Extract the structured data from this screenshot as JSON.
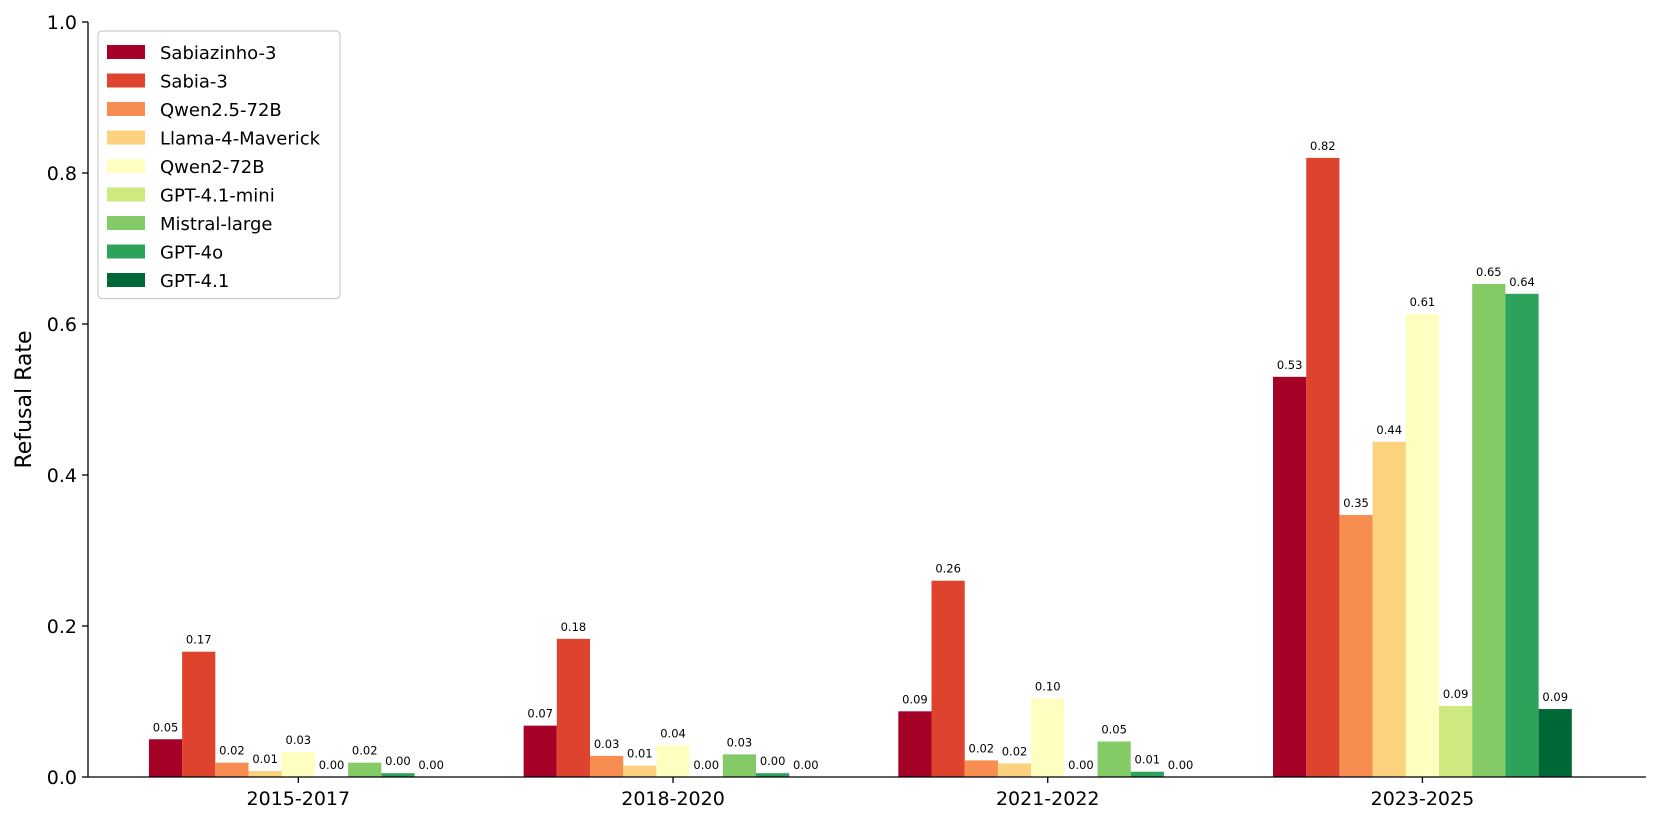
{
  "chart_data": {
    "type": "bar",
    "title": "",
    "xlabel": "",
    "ylabel": "Refusal Rate",
    "ylim": [
      0,
      1.0
    ],
    "yticks": [
      "0.0",
      "0.2",
      "0.4",
      "0.6",
      "0.8",
      "1.0"
    ],
    "categories": [
      "2015-2017",
      "2018-2020",
      "2021-2022",
      "2023-2025"
    ],
    "legend_position": "top-left",
    "grid": false,
    "series": [
      {
        "name": "Sabiazinho-3",
        "color": "#a50026",
        "values": [
          0.05,
          0.068,
          0.087,
          0.53
        ],
        "labels": [
          "0.05",
          "0.07",
          "0.09",
          "0.53"
        ]
      },
      {
        "name": "Sabia-3",
        "color": "#de432e",
        "values": [
          0.166,
          0.183,
          0.26,
          0.82
        ],
        "labels": [
          "0.17",
          "0.18",
          "0.26",
          "0.82"
        ]
      },
      {
        "name": "Qwen2.5-72B",
        "color": "#f88d52",
        "values": [
          0.019,
          0.028,
          0.022,
          0.347
        ],
        "labels": [
          "0.02",
          "0.03",
          "0.02",
          "0.35"
        ]
      },
      {
        "name": "Llama-4-Maverick",
        "color": "#fdd27f",
        "values": [
          0.008,
          0.015,
          0.018,
          0.444
        ],
        "labels": [
          "0.01",
          "0.01",
          "0.02",
          "0.44"
        ]
      },
      {
        "name": "Qwen2-72B",
        "color": "#fefec0",
        "values": [
          0.033,
          0.042,
          0.104,
          0.613
        ],
        "labels": [
          "0.03",
          "0.04",
          "0.10",
          "0.61"
        ]
      },
      {
        "name": "GPT-4.1-mini",
        "color": "#cde980",
        "values": [
          0.0,
          0.0,
          0.0,
          0.094
        ],
        "labels": [
          "0.00",
          "0.00",
          "0.00",
          "0.09"
        ]
      },
      {
        "name": "Mistral-large",
        "color": "#84ca66",
        "values": [
          0.019,
          0.03,
          0.047,
          0.653
        ],
        "labels": [
          "0.02",
          "0.03",
          "0.05",
          "0.65"
        ]
      },
      {
        "name": "GPT-4o",
        "color": "#2ca25a",
        "values": [
          0.005,
          0.005,
          0.007,
          0.64
        ],
        "labels": [
          "0.00",
          "0.00",
          "0.01",
          "0.64"
        ]
      },
      {
        "name": "GPT-4.1",
        "color": "#006837",
        "values": [
          0.0,
          0.0,
          0.0,
          0.09
        ],
        "labels": [
          "0.00",
          "0.00",
          "0.00",
          "0.09"
        ]
      }
    ]
  }
}
